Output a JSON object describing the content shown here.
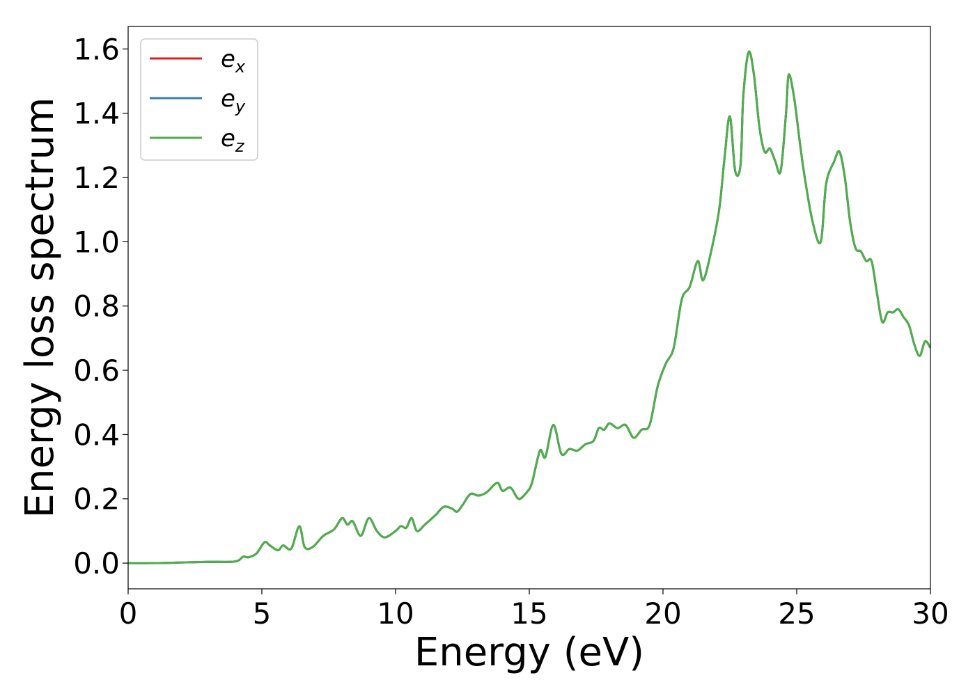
{
  "chart_data": {
    "type": "line",
    "title": "",
    "xlabel": "Energy (eV)",
    "ylabel": "Energy loss spectrum",
    "xlim": [
      0,
      30
    ],
    "ylim": [
      -0.08,
      1.67
    ],
    "xticks": [
      0,
      5,
      10,
      15,
      20,
      25,
      30
    ],
    "xtick_labels": [
      "0",
      "5",
      "10",
      "15",
      "20",
      "25",
      "30"
    ],
    "yticks": [
      0.0,
      0.2,
      0.4,
      0.6,
      0.8,
      1.0,
      1.2,
      1.4,
      1.6
    ],
    "ytick_labels": [
      "0.0",
      "0.2",
      "0.4",
      "0.6",
      "0.8",
      "1.0",
      "1.2",
      "1.4",
      "1.6"
    ],
    "grid": false,
    "legend_position": "top-left",
    "x": [
      0,
      1,
      2,
      3,
      4,
      4.3,
      4.5,
      4.8,
      5.1,
      5.3,
      5.6,
      5.8,
      6.1,
      6.4,
      6.6,
      6.9,
      7.3,
      7.7,
      8.0,
      8.2,
      8.4,
      8.7,
      9.0,
      9.3,
      9.6,
      10.0,
      10.2,
      10.4,
      10.6,
      10.8,
      11.1,
      11.5,
      11.8,
      12.1,
      12.3,
      12.5,
      12.8,
      13.1,
      13.4,
      13.8,
      14.0,
      14.3,
      14.6,
      14.9,
      15.1,
      15.4,
      15.6,
      15.9,
      16.2,
      16.5,
      16.8,
      17.1,
      17.4,
      17.6,
      17.8,
      18.0,
      18.3,
      18.6,
      18.9,
      19.2,
      19.5,
      19.8,
      20.1,
      20.4,
      20.7,
      21.0,
      21.3,
      21.5,
      21.8,
      22.1,
      22.3,
      22.5,
      22.7,
      22.9,
      23.0,
      23.2,
      23.4,
      23.6,
      23.8,
      24.0,
      24.2,
      24.4,
      24.6,
      24.7,
      24.9,
      25.1,
      25.3,
      25.6,
      25.9,
      26.1,
      26.4,
      26.6,
      26.8,
      27.0,
      27.2,
      27.4,
      27.6,
      27.8,
      28.0,
      28.2,
      28.4,
      28.6,
      28.8,
      29.0,
      29.2,
      29.4,
      29.6,
      29.8,
      30.0
    ],
    "series": [
      {
        "name": "e_x",
        "color": "#e41a1c",
        "values": [
          0.0,
          0.0,
          0.002,
          0.004,
          0.005,
          0.02,
          0.018,
          0.03,
          0.065,
          0.055,
          0.04,
          0.055,
          0.045,
          0.115,
          0.05,
          0.05,
          0.085,
          0.105,
          0.14,
          0.12,
          0.13,
          0.085,
          0.14,
          0.1,
          0.08,
          0.1,
          0.115,
          0.11,
          0.14,
          0.1,
          0.12,
          0.15,
          0.175,
          0.17,
          0.16,
          0.18,
          0.215,
          0.21,
          0.22,
          0.25,
          0.225,
          0.235,
          0.2,
          0.22,
          0.25,
          0.35,
          0.33,
          0.43,
          0.34,
          0.355,
          0.35,
          0.37,
          0.38,
          0.42,
          0.415,
          0.435,
          0.42,
          0.43,
          0.39,
          0.415,
          0.43,
          0.55,
          0.62,
          0.67,
          0.82,
          0.86,
          0.94,
          0.88,
          0.97,
          1.1,
          1.26,
          1.39,
          1.22,
          1.24,
          1.45,
          1.59,
          1.52,
          1.36,
          1.28,
          1.29,
          1.25,
          1.22,
          1.4,
          1.52,
          1.45,
          1.32,
          1.2,
          1.06,
          1.0,
          1.18,
          1.25,
          1.28,
          1.2,
          1.06,
          0.98,
          0.97,
          0.94,
          0.94,
          0.84,
          0.75,
          0.78,
          0.78,
          0.79,
          0.765,
          0.74,
          0.68,
          0.645,
          0.69,
          0.67
        ]
      },
      {
        "name": "e_y",
        "color": "#377eb8",
        "values": [
          0.0,
          0.0,
          0.002,
          0.004,
          0.005,
          0.02,
          0.018,
          0.03,
          0.065,
          0.055,
          0.04,
          0.055,
          0.045,
          0.115,
          0.05,
          0.05,
          0.085,
          0.105,
          0.14,
          0.12,
          0.13,
          0.085,
          0.14,
          0.1,
          0.08,
          0.1,
          0.115,
          0.11,
          0.14,
          0.1,
          0.12,
          0.15,
          0.175,
          0.17,
          0.16,
          0.18,
          0.215,
          0.21,
          0.22,
          0.25,
          0.225,
          0.235,
          0.2,
          0.22,
          0.25,
          0.35,
          0.33,
          0.43,
          0.34,
          0.355,
          0.35,
          0.37,
          0.38,
          0.42,
          0.415,
          0.435,
          0.42,
          0.43,
          0.39,
          0.415,
          0.43,
          0.55,
          0.62,
          0.67,
          0.82,
          0.86,
          0.94,
          0.88,
          0.97,
          1.1,
          1.26,
          1.39,
          1.22,
          1.24,
          1.45,
          1.59,
          1.52,
          1.36,
          1.28,
          1.29,
          1.25,
          1.22,
          1.4,
          1.52,
          1.45,
          1.32,
          1.2,
          1.06,
          1.0,
          1.18,
          1.25,
          1.28,
          1.2,
          1.06,
          0.98,
          0.97,
          0.94,
          0.94,
          0.84,
          0.75,
          0.78,
          0.78,
          0.79,
          0.765,
          0.74,
          0.68,
          0.645,
          0.69,
          0.67
        ]
      },
      {
        "name": "e_z",
        "color": "#4daf4a",
        "values": [
          0.0,
          0.0,
          0.002,
          0.004,
          0.005,
          0.02,
          0.018,
          0.03,
          0.065,
          0.055,
          0.04,
          0.055,
          0.045,
          0.115,
          0.05,
          0.05,
          0.085,
          0.105,
          0.14,
          0.12,
          0.13,
          0.085,
          0.14,
          0.1,
          0.08,
          0.1,
          0.115,
          0.11,
          0.14,
          0.1,
          0.12,
          0.15,
          0.175,
          0.17,
          0.16,
          0.18,
          0.215,
          0.21,
          0.22,
          0.25,
          0.225,
          0.235,
          0.2,
          0.22,
          0.25,
          0.35,
          0.33,
          0.43,
          0.34,
          0.355,
          0.35,
          0.37,
          0.38,
          0.42,
          0.415,
          0.435,
          0.42,
          0.43,
          0.39,
          0.415,
          0.43,
          0.55,
          0.62,
          0.67,
          0.82,
          0.86,
          0.94,
          0.88,
          0.97,
          1.1,
          1.26,
          1.39,
          1.22,
          1.24,
          1.45,
          1.59,
          1.52,
          1.36,
          1.28,
          1.29,
          1.25,
          1.22,
          1.4,
          1.52,
          1.45,
          1.32,
          1.2,
          1.06,
          1.0,
          1.18,
          1.25,
          1.28,
          1.2,
          1.06,
          0.98,
          0.97,
          0.94,
          0.94,
          0.84,
          0.75,
          0.78,
          0.78,
          0.79,
          0.765,
          0.74,
          0.68,
          0.645,
          0.69,
          0.67
        ]
      }
    ],
    "legend": [
      {
        "base": "e",
        "sub": "x",
        "color": "#e41a1c"
      },
      {
        "base": "e",
        "sub": "y",
        "color": "#377eb8"
      },
      {
        "base": "e",
        "sub": "z",
        "color": "#4daf4a"
      }
    ]
  }
}
